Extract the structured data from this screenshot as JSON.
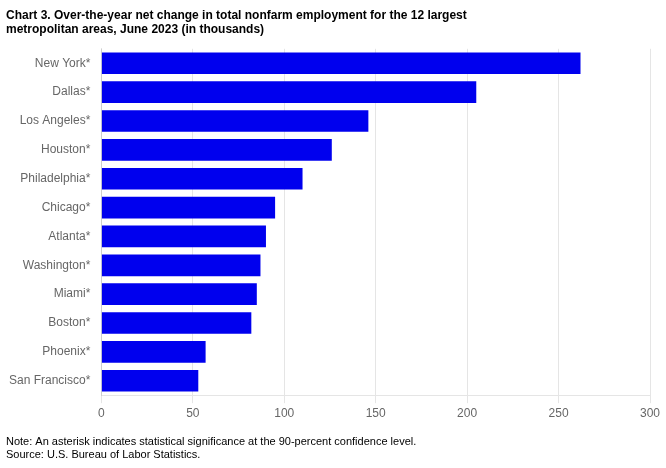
{
  "chart_data": {
    "type": "bar",
    "orientation": "horizontal",
    "title": [
      "Chart 3. Over-the-year net change in total nonfarm employment for the 12 largest",
      "metropolitan areas, June 2023 (in thousands)"
    ],
    "annotations": [
      "Note: An asterisk indicates statistical significance at the 90-percent confidence level.",
      "Source: U.S. Bureau of Labor Statistics."
    ],
    "categories": [
      "San Francisco*",
      "Phoenix*",
      "Boston*",
      "Miami*",
      "Washington*",
      "Atlanta*",
      "Chicago*",
      "Philadelphia*",
      "Houston*",
      "Los Angeles*",
      "Dallas*",
      "New York*"
    ],
    "values": [
      53,
      57,
      82,
      85,
      87,
      90,
      95,
      110,
      126,
      146,
      205,
      262
    ],
    "color": "#0000EE",
    "xlim": [
      0,
      300
    ],
    "xticks": [
      0,
      50,
      100,
      150,
      200,
      250,
      300
    ],
    "grid": true
  }
}
